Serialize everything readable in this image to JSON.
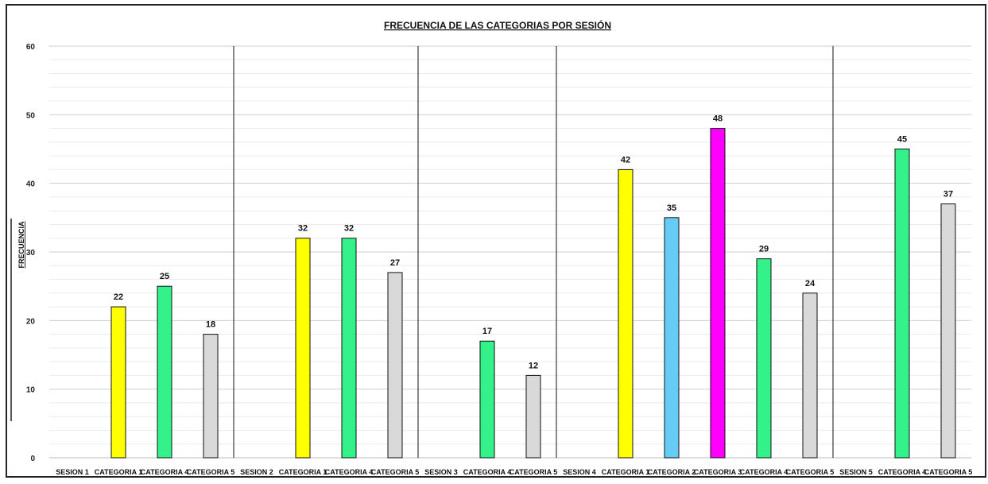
{
  "chart_data": {
    "type": "bar",
    "title": "FRECUENCIA DE LAS CATEGORIAS POR SESIÓN",
    "ylabel": "FRECUENCIA",
    "xlabel": "",
    "ylim": [
      0,
      60
    ],
    "yticks": [
      0,
      10,
      20,
      30,
      40,
      50,
      60
    ],
    "grid": true,
    "legend": "none",
    "groups": [
      {
        "session": "SESION 1",
        "bars": [
          {
            "label": "CATEGORIA 1",
            "value": 22,
            "color": "#FFFF00"
          },
          {
            "label": "CATEGORIA 4",
            "value": 25,
            "color": "#33F28A"
          },
          {
            "label": "CATEGORIA 5",
            "value": 18,
            "color": "#D9D9D9"
          }
        ]
      },
      {
        "session": "SESION 2",
        "bars": [
          {
            "label": "CATEGORIA 1",
            "value": 32,
            "color": "#FFFF00"
          },
          {
            "label": "CATEGORIA 4",
            "value": 32,
            "color": "#33F28A"
          },
          {
            "label": "CATEGORIA 5",
            "value": 27,
            "color": "#D9D9D9"
          }
        ]
      },
      {
        "session": "SESION 3",
        "bars": [
          {
            "label": "CATEGORIA 4",
            "value": 17,
            "color": "#33F28A"
          },
          {
            "label": "CATEGORIA 5",
            "value": 12,
            "color": "#D9D9D9"
          }
        ]
      },
      {
        "session": "SESION 4",
        "bars": [
          {
            "label": "CATEGORIA 1",
            "value": 42,
            "color": "#FFFF00"
          },
          {
            "label": "CATEGORIA 2",
            "value": 35,
            "color": "#66CCF5"
          },
          {
            "label": "CATEGORIA 3",
            "value": 48,
            "color": "#FF00FF"
          },
          {
            "label": "CATEGORIA 4",
            "value": 29,
            "color": "#33F28A"
          },
          {
            "label": "CATEGORIA 5",
            "value": 24,
            "color": "#D9D9D9"
          }
        ]
      },
      {
        "session": "SESION 5",
        "bars": [
          {
            "label": "CATEGORIA 4",
            "value": 45,
            "color": "#33F28A"
          },
          {
            "label": "CATEGORIA 5",
            "value": 37,
            "color": "#D9D9D9"
          }
        ]
      }
    ]
  }
}
